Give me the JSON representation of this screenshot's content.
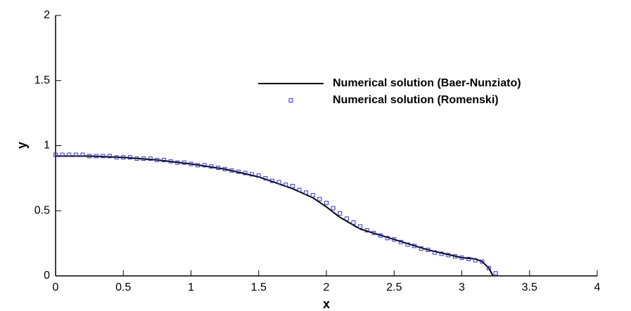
{
  "chart_data": {
    "type": "line",
    "xlabel": "x",
    "ylabel": "y",
    "xlim": [
      0,
      4
    ],
    "ylim": [
      0,
      2
    ],
    "xticks": [
      0,
      0.5,
      1,
      1.5,
      2,
      2.5,
      3,
      3.5,
      4
    ],
    "yticks": [
      0,
      0.5,
      1,
      1.5,
      2
    ],
    "grid": false,
    "legend": "upper right",
    "series": [
      {
        "name": "Numerical solution (Baer-Nunziato)",
        "color": "#000000",
        "style": "line",
        "x": [
          0,
          0.25,
          0.5,
          0.75,
          1,
          1.25,
          1.5,
          1.75,
          1.9,
          2,
          2.1,
          2.25,
          2.5,
          2.75,
          3,
          3.1,
          3.15,
          3.2,
          3.23
        ],
        "values": [
          0.92,
          0.92,
          0.91,
          0.89,
          0.86,
          0.82,
          0.76,
          0.67,
          0.6,
          0.53,
          0.45,
          0.36,
          0.28,
          0.2,
          0.14,
          0.13,
          0.11,
          0.06,
          0
        ]
      },
      {
        "name": "Numerical solution (Romenski)",
        "color": "#3333cc",
        "style": "markers",
        "x": [
          0,
          0.05,
          0.1,
          0.15,
          0.2,
          0.25,
          0.3,
          0.35,
          0.4,
          0.45,
          0.5,
          0.55,
          0.6,
          0.65,
          0.7,
          0.75,
          0.8,
          0.85,
          0.9,
          0.95,
          1,
          1.05,
          1.1,
          1.15,
          1.2,
          1.25,
          1.3,
          1.35,
          1.4,
          1.45,
          1.5,
          1.55,
          1.6,
          1.65,
          1.7,
          1.75,
          1.8,
          1.85,
          1.9,
          1.95,
          2,
          2.05,
          2.1,
          2.15,
          2.2,
          2.25,
          2.3,
          2.35,
          2.4,
          2.45,
          2.5,
          2.55,
          2.6,
          2.65,
          2.7,
          2.75,
          2.8,
          2.85,
          2.9,
          2.95,
          3,
          3.05,
          3.1,
          3.15,
          3.2,
          3.25
        ],
        "values": [
          0.93,
          0.93,
          0.93,
          0.93,
          0.93,
          0.92,
          0.92,
          0.92,
          0.92,
          0.91,
          0.91,
          0.91,
          0.9,
          0.9,
          0.9,
          0.89,
          0.89,
          0.88,
          0.87,
          0.87,
          0.86,
          0.85,
          0.85,
          0.84,
          0.83,
          0.82,
          0.81,
          0.8,
          0.79,
          0.78,
          0.77,
          0.75,
          0.73,
          0.72,
          0.7,
          0.69,
          0.66,
          0.64,
          0.62,
          0.59,
          0.56,
          0.52,
          0.48,
          0.44,
          0.41,
          0.38,
          0.35,
          0.33,
          0.31,
          0.29,
          0.28,
          0.26,
          0.24,
          0.23,
          0.21,
          0.2,
          0.18,
          0.17,
          0.16,
          0.15,
          0.14,
          0.13,
          0.12,
          0.11,
          0.06,
          0.02
        ]
      }
    ]
  }
}
